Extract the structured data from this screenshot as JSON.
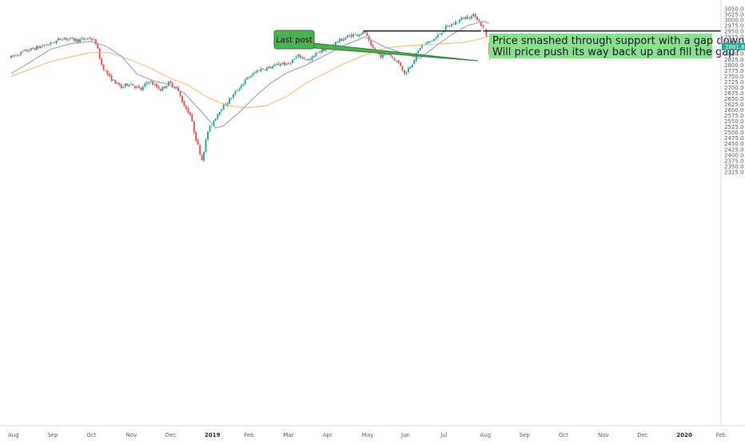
{
  "chart_data": {
    "type": "candlestick",
    "y_ticks": [
      3050.0,
      3025.0,
      3000.0,
      2975.0,
      2950.0,
      2925.0,
      2900.0,
      2875.0,
      2850.0,
      2825.0,
      2800.0,
      2775.0,
      2750.0,
      2725.0,
      2700.0,
      2675.0,
      2650.0,
      2625.0,
      2600.0,
      2575.0,
      2550.0,
      2525.0,
      2500.0,
      2475.0,
      2450.0,
      2425.0,
      2400.0,
      2375.0,
      2350.0,
      2325.0
    ],
    "ylim": [
      2313,
      3062
    ],
    "x_labels": [
      {
        "label": "Aug",
        "month_index": 0,
        "bold": false
      },
      {
        "label": "Sep",
        "month_index": 1,
        "bold": false
      },
      {
        "label": "Oct",
        "month_index": 2,
        "bold": false
      },
      {
        "label": "Nov",
        "month_index": 3,
        "bold": false
      },
      {
        "label": "Dec",
        "month_index": 4,
        "bold": false
      },
      {
        "label": "2019",
        "month_index": 5,
        "bold": true
      },
      {
        "label": "Feb",
        "month_index": 6,
        "bold": false
      },
      {
        "label": "Mar",
        "month_index": 7,
        "bold": false
      },
      {
        "label": "Apr",
        "month_index": 8,
        "bold": false
      },
      {
        "label": "May",
        "month_index": 9,
        "bold": false
      },
      {
        "label": "Jun",
        "month_index": 10,
        "bold": false
      },
      {
        "label": "Jul",
        "month_index": 11,
        "bold": false
      },
      {
        "label": "Aug",
        "month_index": 12,
        "bold": false
      },
      {
        "label": "Sep",
        "month_index": 13,
        "bold": false
      },
      {
        "label": "Oct",
        "month_index": 14,
        "bold": false
      },
      {
        "label": "Nov",
        "month_index": 15,
        "bold": false
      },
      {
        "label": "Dec",
        "month_index": 16,
        "bold": false
      },
      {
        "label": "2020",
        "month_index": 17,
        "bold": true
      },
      {
        "label": "Feb",
        "month_index": 18,
        "bold": false
      }
    ],
    "close_anchors": [
      [
        0,
        2835
      ],
      [
        0.3,
        2858
      ],
      [
        0.7,
        2880
      ],
      [
        1.0,
        2895
      ],
      [
        1.3,
        2920
      ],
      [
        1.7,
        2910
      ],
      [
        2.0,
        2920
      ],
      [
        2.15,
        2900
      ],
      [
        2.3,
        2800
      ],
      [
        2.5,
        2745
      ],
      [
        2.8,
        2700
      ],
      [
        3.0,
        2720
      ],
      [
        3.3,
        2690
      ],
      [
        3.5,
        2730
      ],
      [
        3.8,
        2690
      ],
      [
        4.0,
        2720
      ],
      [
        4.2,
        2700
      ],
      [
        4.4,
        2620
      ],
      [
        4.55,
        2580
      ],
      [
        4.7,
        2470
      ],
      [
        4.85,
        2380
      ],
      [
        5.0,
        2505
      ],
      [
        5.3,
        2600
      ],
      [
        5.5,
        2635
      ],
      [
        5.8,
        2700
      ],
      [
        6.0,
        2740
      ],
      [
        6.3,
        2780
      ],
      [
        6.6,
        2790
      ],
      [
        6.9,
        2810
      ],
      [
        7.0,
        2800
      ],
      [
        7.3,
        2840
      ],
      [
        7.6,
        2820
      ],
      [
        7.8,
        2860
      ],
      [
        8.0,
        2870
      ],
      [
        8.3,
        2905
      ],
      [
        8.6,
        2930
      ],
      [
        9.0,
        2945
      ],
      [
        9.15,
        2880
      ],
      [
        9.4,
        2840
      ],
      [
        9.6,
        2850
      ],
      [
        9.9,
        2800
      ],
      [
        10.0,
        2760
      ],
      [
        10.2,
        2810
      ],
      [
        10.4,
        2880
      ],
      [
        10.6,
        2900
      ],
      [
        10.8,
        2920
      ],
      [
        11.0,
        2960
      ],
      [
        11.3,
        2990
      ],
      [
        11.5,
        3010
      ],
      [
        11.8,
        3020
      ],
      [
        12.0,
        2965
      ],
      [
        12.1,
        2880
      ],
      [
        12.2,
        2870
      ]
    ],
    "ma_fast": [
      [
        0,
        2762
      ],
      [
        0.5,
        2815
      ],
      [
        1.0,
        2870
      ],
      [
        1.5,
        2895
      ],
      [
        2.0,
        2905
      ],
      [
        2.4,
        2885
      ],
      [
        2.8,
        2840
      ],
      [
        3.2,
        2760
      ],
      [
        3.6,
        2730
      ],
      [
        4.0,
        2715
      ],
      [
        4.4,
        2675
      ],
      [
        4.8,
        2600
      ],
      [
        5.2,
        2520
      ],
      [
        5.4,
        2530
      ],
      [
        5.8,
        2590
      ],
      [
        6.2,
        2660
      ],
      [
        6.6,
        2720
      ],
      [
        7.0,
        2765
      ],
      [
        7.5,
        2800
      ],
      [
        8.0,
        2845
      ],
      [
        8.5,
        2890
      ],
      [
        9.0,
        2925
      ],
      [
        9.5,
        2880
      ],
      [
        10.0,
        2850
      ],
      [
        10.4,
        2830
      ],
      [
        10.8,
        2885
      ],
      [
        11.2,
        2935
      ],
      [
        11.6,
        2975
      ],
      [
        12.0,
        2995
      ],
      [
        12.15,
        2985
      ]
    ],
    "ma_slow": [
      [
        0,
        2750
      ],
      [
        1.0,
        2815
      ],
      [
        2.0,
        2855
      ],
      [
        2.5,
        2855
      ],
      [
        3.0,
        2825
      ],
      [
        3.5,
        2790
      ],
      [
        4.0,
        2745
      ],
      [
        4.5,
        2710
      ],
      [
        5.0,
        2655
      ],
      [
        5.5,
        2620
      ],
      [
        6.0,
        2610
      ],
      [
        6.5,
        2620
      ],
      [
        7.0,
        2660
      ],
      [
        7.5,
        2720
      ],
      [
        8.0,
        2765
      ],
      [
        8.5,
        2810
      ],
      [
        9.0,
        2845
      ],
      [
        9.5,
        2875
      ],
      [
        10.0,
        2885
      ],
      [
        10.5,
        2890
      ],
      [
        11.0,
        2895
      ],
      [
        11.5,
        2900
      ],
      [
        12.0,
        2920
      ],
      [
        12.15,
        2928
      ]
    ],
    "support_level": 2951.5,
    "support_segments": [
      {
        "from_month": 8.95,
        "to_month": 11.95
      },
      {
        "from_month": 12.0,
        "to_month": 21.0
      }
    ],
    "gap_candles": [
      {
        "month": 12.08,
        "open": 2958,
        "high": 2962,
        "low": 2925,
        "close": 2930
      },
      {
        "month": 12.16,
        "open": 2900,
        "high": 2905,
        "low": 2822,
        "close": 2845
      },
      {
        "month": 12.26,
        "open": 2860,
        "high": 2888,
        "low": 2850,
        "close": 2881.8
      }
    ],
    "last_price": "2881.8",
    "colors": {
      "up": "#26a69a",
      "down": "#ef5350",
      "ma_fast": "#8f8fd4",
      "ma_slow": "#ffb36b",
      "support": "#131722",
      "note_bg": "#8be08d",
      "callout_bg": "#4caf50",
      "callout_border": "#2e7d32",
      "price_tag": "#26a69a",
      "axis_line": "#d8dae0"
    }
  },
  "annotations": {
    "callout_label": "Last post",
    "note_line1": "Price smashed through support with a gap down.",
    "note_line2": "Will price push its way back up and fill the gap?"
  }
}
